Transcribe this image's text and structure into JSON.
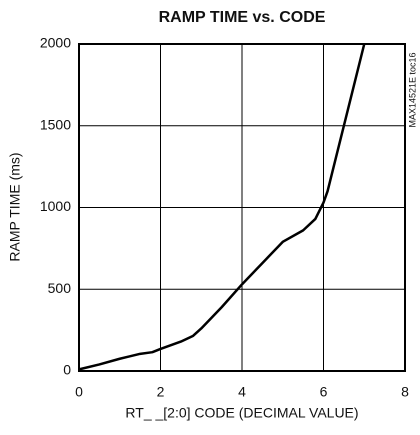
{
  "chart_data": {
    "type": "line",
    "title": "RAMP TIME vs. CODE",
    "x_label": "RT_ _[2:0] CODE (DECIMAL VALUE)",
    "y_label": "RAMP TIME (ms)",
    "annotation": "MAX14521E toc16",
    "x": [
      0,
      0.5,
      1,
      1.5,
      1.8,
      2,
      2.5,
      2.8,
      3,
      3.5,
      4,
      4.5,
      5,
      5.5,
      5.8,
      6,
      6.1,
      6.3,
      6.6,
      7
    ],
    "series": [
      {
        "name": "RAMP TIME",
        "color": "#000000",
        "values": [
          10,
          40,
          75,
          105,
          115,
          135,
          180,
          215,
          260,
          390,
          530,
          660,
          790,
          860,
          930,
          1030,
          1100,
          1300,
          1600,
          2000
        ]
      }
    ],
    "xlim": [
      0,
      8
    ],
    "xticks": [
      0,
      2,
      4,
      6,
      8
    ],
    "ylim": [
      0,
      2000
    ],
    "yticks": [
      0,
      500,
      1000,
      1500,
      2000
    ],
    "grid": true
  }
}
